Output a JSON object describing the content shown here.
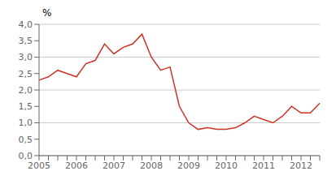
{
  "chart_data": {
    "type": "line",
    "y_label": "%",
    "categories": [
      "2005",
      null,
      null,
      null,
      "2006",
      null,
      null,
      null,
      "2007",
      null,
      null,
      null,
      "2008",
      null,
      null,
      null,
      "2009",
      null,
      null,
      null,
      "2010",
      null,
      null,
      null,
      "2011",
      null,
      null,
      null,
      "2012",
      null,
      null
    ],
    "values": [
      2.3,
      2.4,
      2.6,
      2.5,
      2.4,
      2.8,
      2.9,
      3.4,
      3.1,
      3.3,
      3.4,
      3.7,
      3.0,
      2.6,
      2.7,
      1.5,
      1.0,
      0.8,
      0.85,
      0.8,
      0.8,
      0.85,
      1.0,
      1.2,
      1.1,
      1.0,
      1.2,
      1.5,
      1.3,
      1.3,
      1.6
    ],
    "color": "#cc3322",
    "ylim": [
      0.0,
      4.0
    ],
    "yticks": [
      {
        "value": 0.0,
        "label": "0,0"
      },
      {
        "value": 0.5,
        "label": "0,5"
      },
      {
        "value": 1.0,
        "label": "1,0"
      },
      {
        "value": 1.5,
        "label": "1,5"
      },
      {
        "value": 2.0,
        "label": "2,0"
      },
      {
        "value": 2.5,
        "label": "2,5"
      },
      {
        "value": 3.0,
        "label": "3,0"
      },
      {
        "value": 3.5,
        "label": "3,5"
      },
      {
        "value": 4.0,
        "label": "4,0"
      }
    ],
    "grid": true
  }
}
